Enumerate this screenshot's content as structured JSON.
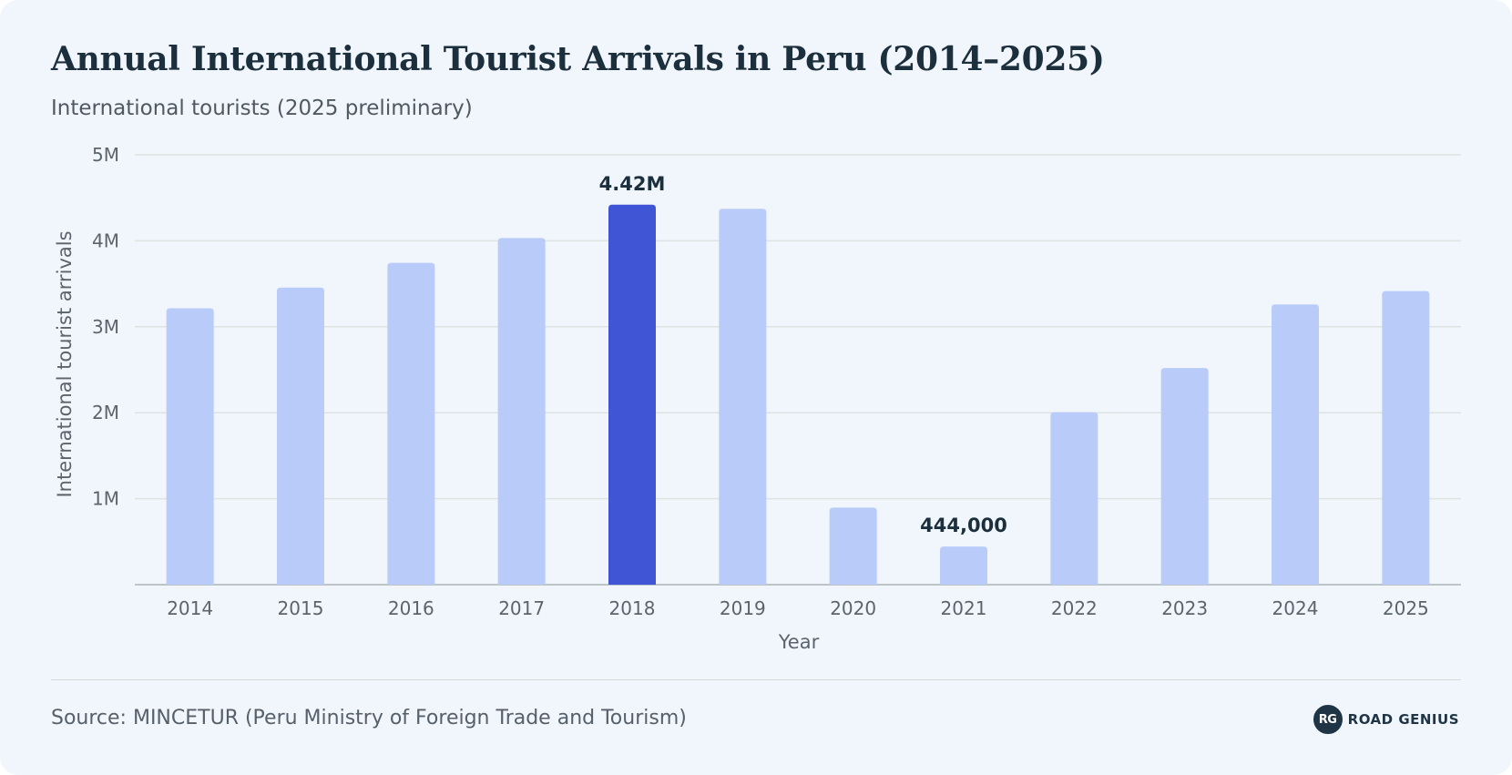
{
  "header": {
    "title": "Annual International Tourist Arrivals in Peru (2014–2025)",
    "subtitle": "International tourists (2025 preliminary)"
  },
  "footer": {
    "source": "Source: MINCETUR (Peru Ministry of Foreign Trade and Tourism)",
    "logo_mark": "RG",
    "logo_text": "ROAD GENIUS"
  },
  "colors": {
    "bar": "#b9cbf8",
    "highlight_bar": "#3f55d5",
    "grid": "#dde3df",
    "axis": "#aab3b6",
    "tick_text": "#5c646b",
    "data_label": "#1c2f3c"
  },
  "chart_data": {
    "type": "bar",
    "categories": [
      "2014",
      "2015",
      "2016",
      "2017",
      "2018",
      "2019",
      "2020",
      "2021",
      "2022",
      "2023",
      "2024",
      "2025"
    ],
    "values": [
      3215000,
      3456000,
      3744000,
      4032000,
      4420000,
      4372000,
      897000,
      444000,
      2006000,
      2520000,
      3260000,
      3415000
    ],
    "highlight_index": 4,
    "data_labels": [
      {
        "index": 4,
        "text": "4.42M"
      },
      {
        "index": 7,
        "text": "444,000"
      }
    ],
    "xlabel": "Year",
    "ylabel": "International tourist arrivals",
    "ylim": [
      0,
      5000000
    ],
    "yticks": [
      {
        "value": 1000000,
        "label": "1M"
      },
      {
        "value": 2000000,
        "label": "2M"
      },
      {
        "value": 3000000,
        "label": "3M"
      },
      {
        "value": 4000000,
        "label": "4M"
      },
      {
        "value": 5000000,
        "label": "5M"
      }
    ],
    "grid": true,
    "legend": "none"
  }
}
